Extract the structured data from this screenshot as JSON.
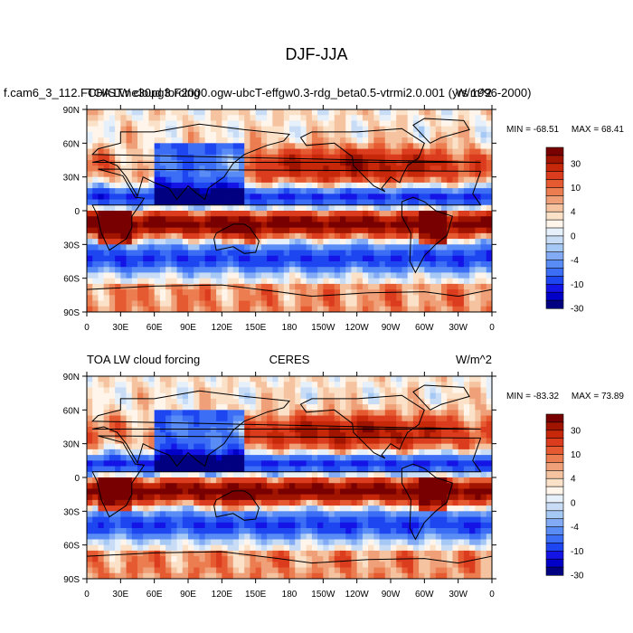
{
  "figure_title": "DJF-JJA",
  "chart_data": [
    {
      "type": "heatmap",
      "title_left": "f.cam6_3_112.FCHIST.ne30pg3.F2000.ogw-ubcT-effgw0.3-rdg_beta0.5-vtrmi2.0.001 (yrs 1996-2000)",
      "title_left_overlay": "TOA LW cloud forcing",
      "title_right": "W/m^2",
      "min_label": "MIN = -68.51",
      "max_label": "MAX =  68.41",
      "min_value": -68.51,
      "max_value": 68.41,
      "xlim": [
        0,
        360
      ],
      "ylim": [
        -90,
        90
      ],
      "x_ticks": [
        "0",
        "30E",
        "60E",
        "90E",
        "120E",
        "150E",
        "180",
        "150W",
        "120W",
        "90W",
        "60W",
        "30W",
        "0"
      ],
      "y_ticks": [
        "90N",
        "60N",
        "30N",
        "0",
        "30S",
        "60S",
        "90S"
      ],
      "colorbar_levels": [
        -40,
        -35,
        -30,
        -25,
        -20,
        -15,
        -10,
        -8,
        -6,
        -4,
        -2,
        0,
        2,
        4,
        6,
        8,
        10,
        15,
        20,
        25,
        30,
        35,
        40
      ],
      "colorbar_labels": [
        "30",
        "10",
        "4",
        "0",
        "-4",
        "-10",
        "-30"
      ]
    },
    {
      "type": "heatmap",
      "title_left": "TOA LW cloud forcing",
      "title_center": "CERES",
      "title_right": "W/m^2",
      "min_label": "MIN = -83.32",
      "max_label": "MAX =  73.89",
      "min_value": -83.32,
      "max_value": 73.89,
      "xlim": [
        0,
        360
      ],
      "ylim": [
        -90,
        90
      ],
      "x_ticks": [
        "0",
        "30E",
        "60E",
        "90E",
        "120E",
        "150E",
        "180",
        "150W",
        "120W",
        "90W",
        "60W",
        "30W",
        "0"
      ],
      "y_ticks": [
        "90N",
        "60N",
        "30N",
        "0",
        "30S",
        "60S",
        "90S"
      ],
      "colorbar_levels": [
        -40,
        -35,
        -30,
        -25,
        -20,
        -15,
        -10,
        -8,
        -6,
        -4,
        -2,
        0,
        2,
        4,
        6,
        8,
        10,
        15,
        20,
        25,
        30,
        35,
        40
      ],
      "colorbar_labels": [
        "30",
        "10",
        "4",
        "0",
        "-4",
        "-10",
        "-30"
      ]
    }
  ],
  "palette": [
    "#000080",
    "#0000c8",
    "#1414e6",
    "#1e46f0",
    "#3c6ef5",
    "#5a8cf5",
    "#82aaf5",
    "#a5c8f5",
    "#c8dcf5",
    "#e6f0fa",
    "#fff5eb",
    "#fae1c8",
    "#f5c3a0",
    "#f0a078",
    "#eb7d50",
    "#e65a32",
    "#dc3c1e",
    "#c8280a",
    "#a01400",
    "#780000"
  ]
}
